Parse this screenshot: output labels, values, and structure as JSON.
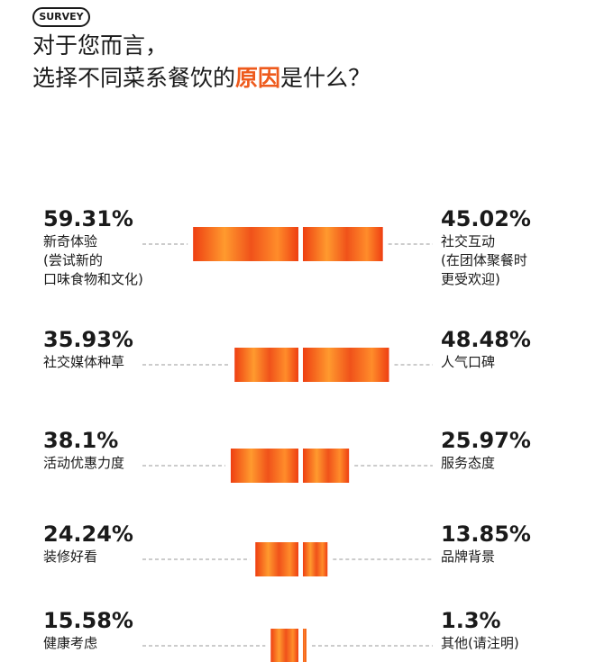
{
  "badge": "SURVEY",
  "title": {
    "line1": "对于您而言，",
    "line2_pre": "选择不同菜系餐饮的",
    "line2_highlight": "原因",
    "line2_post": "是什么？"
  },
  "colors": {
    "accent": "#ee5a1c",
    "bar_light": "#ff9a2e",
    "bar_dark": "#ee3f12",
    "text": "#1a1a1a",
    "dash": "#9a9a9a"
  },
  "chart_data": {
    "type": "bar",
    "layout": "butterfly",
    "unit": "%",
    "rows": [
      {
        "left": {
          "value": 59.31,
          "label_value": "59.31%",
          "lines": [
            "新奇体验",
            "(尝试新的",
            "口味食物和文化)"
          ]
        },
        "right": {
          "value": 45.02,
          "label_value": "45.02%",
          "lines": [
            "社交互动",
            "(在团体聚餐时",
            "更受欢迎)"
          ]
        }
      },
      {
        "left": {
          "value": 35.93,
          "label_value": "35.93%",
          "lines": [
            "社交媒体种草"
          ]
        },
        "right": {
          "value": 48.48,
          "label_value": "48.48%",
          "lines": [
            "人气口碑"
          ]
        }
      },
      {
        "left": {
          "value": 38.1,
          "label_value": "38.1%",
          "lines": [
            "活动优惠力度"
          ]
        },
        "right": {
          "value": 25.97,
          "label_value": "25.97%",
          "lines": [
            "服务态度"
          ]
        }
      },
      {
        "left": {
          "value": 24.24,
          "label_value": "24.24%",
          "lines": [
            "装修好看"
          ]
        },
        "right": {
          "value": 13.85,
          "label_value": "13.85%",
          "lines": [
            "品牌背景"
          ]
        }
      },
      {
        "left": {
          "value": 15.58,
          "label_value": "15.58%",
          "lines": [
            "健康考虑"
          ]
        },
        "right": {
          "value": 1.3,
          "label_value": "1.3%",
          "lines": [
            "其他(请注明)"
          ]
        }
      }
    ]
  }
}
